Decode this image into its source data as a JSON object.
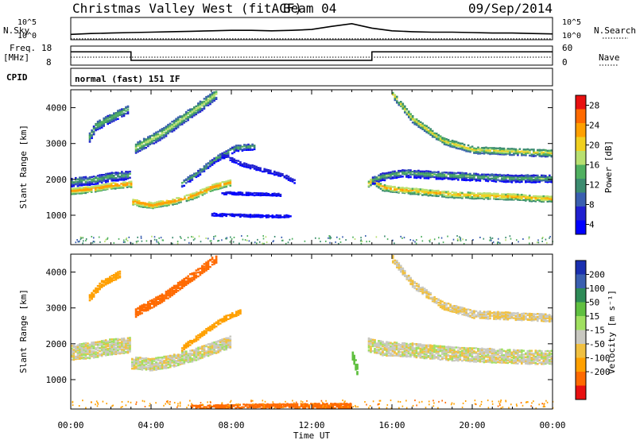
{
  "header": {
    "station": "Christmas Valley West (fitACF)",
    "beam": "Beam 04",
    "date": "09/Sep/2014"
  },
  "strip_labels": {
    "nsky": "N.Sky",
    "nsearch": "N.Search",
    "freq": "Freq.",
    "freq_unit": "[MHz]",
    "nave": "Nave",
    "cpid": "CPID",
    "cpid_value": "normal (fast) 151 IF",
    "noise_ticks_left": [
      "10^5",
      "10^0"
    ],
    "noise_ticks_right": [
      "10^5",
      "10^0"
    ],
    "freq_ticks": [
      "18",
      "8"
    ],
    "nave_ticks": [
      "60",
      "0"
    ]
  },
  "colorbars": {
    "power": {
      "label": "Power [dB]",
      "ticks": [
        "28",
        "24",
        "20",
        "16",
        "12",
        "8",
        "4"
      ],
      "colors": [
        "#e81010",
        "#ff6a00",
        "#ffa000",
        "#f0d020",
        "#b8e070",
        "#50b060",
        "#3c8c70",
        "#3a5fb0",
        "#2020d0",
        "#0000ff"
      ]
    },
    "velocity": {
      "label": "Velocity [m s⁻¹]",
      "ticks": [
        "200",
        "100",
        "50",
        "15",
        "-15",
        "-50",
        "-100",
        "-200"
      ],
      "colors": [
        "#1a2fb0",
        "#3a5fb0",
        "#2e8b57",
        "#60c040",
        "#a0e060",
        "#c8c8c0",
        "#f0c040",
        "#ffa000",
        "#ff6a00",
        "#e81010"
      ]
    }
  },
  "chart_data": [
    {
      "type": "line",
      "panel": "noise",
      "series": [
        {
          "name": "N.Sky",
          "x": [
            0,
            1,
            2,
            3,
            4,
            5,
            6,
            7,
            8,
            9,
            10,
            11,
            12,
            13,
            14,
            15,
            16,
            17,
            18,
            19,
            20,
            21,
            22,
            23,
            24
          ],
          "values": [
            1.2,
            1.4,
            1.5,
            1.6,
            1.7,
            1.8,
            1.9,
            2.0,
            2.1,
            2.1,
            2.0,
            2.1,
            2.3,
            3.0,
            3.6,
            2.6,
            2.0,
            1.8,
            1.7,
            1.7,
            1.6,
            1.5,
            1.5,
            1.4,
            1.3
          ]
        },
        {
          "name": "N.Search",
          "x": [
            0,
            24
          ],
          "values": [
            0.2,
            0.2
          ]
        }
      ],
      "ylim": [
        0,
        5
      ],
      "yscale": "log"
    },
    {
      "type": "line",
      "panel": "frequency",
      "series": [
        {
          "name": "Freq.",
          "x": [
            0,
            3,
            3,
            15,
            15,
            24
          ],
          "values": [
            15.0,
            15.0,
            10.5,
            10.5,
            15.0,
            15.0
          ]
        },
        {
          "name": "Nave",
          "x": [
            0,
            24
          ],
          "values": [
            25,
            25
          ]
        }
      ],
      "ylim_freq": [
        8,
        18
      ],
      "ylim_nave": [
        0,
        60
      ]
    },
    {
      "type": "heatmap",
      "panel": "power",
      "ylabel": "Slant Range [km]",
      "xlim": [
        0,
        24
      ],
      "ylim": [
        180,
        4500
      ],
      "yticks": [
        1000,
        2000,
        3000,
        4000
      ],
      "colorbar": "Power [dB]",
      "features": [
        {
          "x": [
            0,
            1,
            2,
            3,
            3.01,
            4,
            5,
            6,
            7,
            8
          ],
          "y": [
            1700,
            1750,
            1850,
            1900,
            1400,
            1300,
            1400,
            1550,
            1800,
            1950
          ],
          "dB": 26,
          "width_km": 180
        },
        {
          "x": [
            0,
            1,
            2,
            3
          ],
          "y": [
            1950,
            2000,
            2100,
            2150
          ],
          "dB": 14,
          "width_km": 250
        },
        {
          "x": [
            0.9,
            1.2,
            2.0,
            2.9
          ],
          "y": [
            3200,
            3500,
            3750,
            4000
          ],
          "dB": 16,
          "width_km": 250
        },
        {
          "x": [
            3.2,
            4.5,
            5.5,
            6.5,
            7.3
          ],
          "y": [
            2900,
            3300,
            3700,
            4100,
            4450
          ],
          "dB": 18,
          "width_km": 300
        },
        {
          "x": [
            5.5,
            6.3,
            7.2,
            8.2,
            9.2
          ],
          "y": [
            1900,
            2200,
            2600,
            2900,
            2950
          ],
          "dB": 14,
          "width_km": 180
        },
        {
          "x": [
            7.5,
            8.5,
            9.5,
            10.5,
            11.2
          ],
          "y": [
            2700,
            2450,
            2300,
            2150,
            1950
          ],
          "dB": 8,
          "width_km": 120
        },
        {
          "x": [
            7.5,
            9.0,
            10.5
          ],
          "y": [
            1650,
            1620,
            1600
          ],
          "dB": 6,
          "width_km": 80
        },
        {
          "x": [
            7.0,
            8.5,
            10.0,
            11.0
          ],
          "y": [
            1050,
            1020,
            1000,
            1000
          ],
          "dB": 6,
          "width_km": 80
        },
        {
          "x": [
            14.8,
            15.0,
            15.5,
            16.0,
            17,
            18,
            19,
            20,
            21,
            22,
            23,
            24
          ],
          "y": [
            1900,
            2000,
            1800,
            1750,
            1700,
            1650,
            1600,
            1580,
            1560,
            1540,
            1500,
            1480
          ],
          "dB": 24,
          "width_km": 180
        },
        {
          "x": [
            15.0,
            15.5,
            16.5,
            18,
            20,
            22,
            24
          ],
          "y": [
            2000,
            2100,
            2200,
            2150,
            2100,
            2050,
            2050
          ],
          "dB": 14,
          "width_km": 220
        },
        {
          "x": [
            16.0,
            17.0,
            18.5,
            20.0,
            22.0,
            24.0
          ],
          "y": [
            4400,
            3700,
            3100,
            2850,
            2800,
            2750
          ],
          "dB": 20,
          "width_km": 200
        }
      ]
    },
    {
      "type": "heatmap",
      "panel": "velocity",
      "xlabel": "Time UT",
      "ylabel": "Slant Range [km]",
      "xlim": [
        0,
        24
      ],
      "ylim": [
        180,
        4500
      ],
      "xticks": [
        "00:00",
        "04:00",
        "08:00",
        "12:00",
        "16:00",
        "20:00",
        "00:00"
      ],
      "yticks": [
        1000,
        2000,
        3000,
        4000
      ],
      "colorbar": "Velocity [m s⁻¹]",
      "features": [
        {
          "x": [
            0,
            1,
            2,
            3
          ],
          "y": [
            1800,
            1850,
            1950,
            2000
          ],
          "v": 0,
          "width_km": 450
        },
        {
          "x": [
            3.01,
            4,
            5,
            6,
            7,
            8
          ],
          "y": [
            1500,
            1450,
            1550,
            1700,
            1900,
            2100
          ],
          "v": 0,
          "width_km": 350
        },
        {
          "x": [
            3.2,
            4.5,
            5.5,
            6.5,
            7.3
          ],
          "y": [
            2900,
            3300,
            3700,
            4100,
            4450
          ],
          "v": -60,
          "width_km": 250
        },
        {
          "x": [
            0.9,
            1.5,
            2.5
          ],
          "y": [
            3300,
            3700,
            4000
          ],
          "v": -30,
          "width_km": 200
        },
        {
          "x": [
            5.5,
            6.5,
            7.5,
            8.5
          ],
          "y": [
            1900,
            2300,
            2700,
            2950
          ],
          "v": -40,
          "width_km": 150
        },
        {
          "x": [
            14.8,
            15.5,
            17,
            19,
            21,
            23,
            24
          ],
          "y": [
            2000,
            1900,
            1850,
            1750,
            1700,
            1650,
            1650
          ],
          "v": 0,
          "width_km": 400
        },
        {
          "x": [
            16.0,
            17.0,
            18.5,
            20.0,
            22.0,
            24.0
          ],
          "y": [
            4400,
            3700,
            3100,
            2850,
            2800,
            2750
          ],
          "v": -5,
          "width_km": 220
        },
        {
          "x": [
            14.0,
            14.3
          ],
          "y": [
            1700,
            1200
          ],
          "v": 40,
          "width_km": 300
        },
        {
          "x": [
            6.0,
            9.0,
            12.0,
            14.0
          ],
          "y": [
            250,
            280,
            300,
            300
          ],
          "v": -60,
          "width_km": 150
        }
      ]
    }
  ]
}
